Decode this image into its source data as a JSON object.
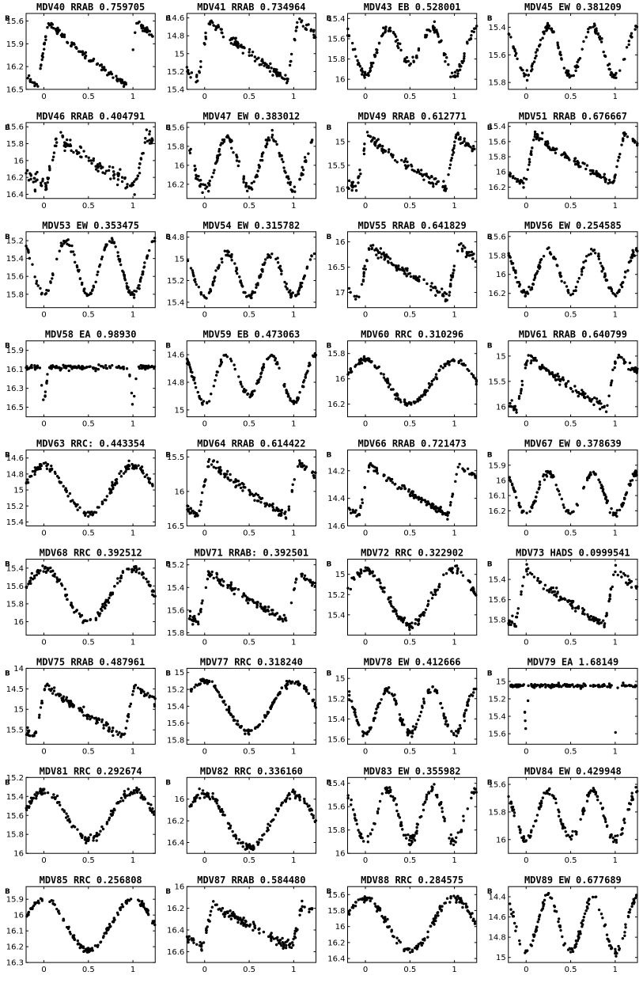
{
  "page": {
    "y_axis_label": "B",
    "x_ticks": [
      "0",
      "0.5",
      "1"
    ]
  },
  "chart_data": [
    {
      "type": "scatter",
      "star": "MDV40",
      "class": "RRAB",
      "period": "0.759705",
      "title": "MDV40 RRAB 0.759705",
      "ylim": [
        16.5,
        15.5
      ],
      "yticks": [
        "15.6",
        "15.9",
        "16.2",
        "16.5"
      ],
      "xlim": [
        -0.2,
        1.25
      ],
      "min_mag": 15.6,
      "max_mag": 16.45,
      "shape": "rr",
      "phase_max": 0.05,
      "noise": 0.05
    },
    {
      "type": "scatter",
      "star": "MDV41",
      "class": "RRAB",
      "period": "0.734964",
      "title": "MDV41 RRAB 0.734964",
      "ylim": [
        15.4,
        14.55
      ],
      "yticks": [
        "14.6",
        "14.8",
        "15",
        "15.2",
        "15.4"
      ],
      "xlim": [
        -0.2,
        1.25
      ],
      "min_mag": 14.6,
      "max_mag": 15.3,
      "shape": "rr",
      "phase_max": 0.05,
      "noise": 0.06
    },
    {
      "type": "scatter",
      "star": "MDV43",
      "class": "EB",
      "period": "0.528001",
      "title": "MDV43 EB 0.528001",
      "ylim": [
        16.1,
        15.35
      ],
      "yticks": [
        "15.4",
        "15.6",
        "15.8",
        "16"
      ],
      "xlim": [
        -0.2,
        1.25
      ],
      "min_mag": 15.5,
      "max_mag": 15.95,
      "shape": "eb",
      "secondary": 0.75,
      "noise": 0.08
    },
    {
      "type": "scatter",
      "star": "MDV45",
      "class": "EW",
      "period": "0.381209",
      "title": "MDV45 EW 0.381209",
      "ylim": [
        15.85,
        15.3
      ],
      "yticks": [
        "15.4",
        "15.6",
        "15.8"
      ],
      "xlim": [
        -0.2,
        1.25
      ],
      "min_mag": 15.4,
      "max_mag": 15.75,
      "shape": "ew",
      "noise": 0.07
    },
    {
      "type": "scatter",
      "star": "MDV46",
      "class": "RRAB",
      "period": "0.404791",
      "title": "MDV46 RRAB 0.404791",
      "ylim": [
        16.45,
        15.55
      ],
      "yticks": [
        "15.6",
        "15.8",
        "16",
        "16.2",
        "16.4"
      ],
      "xlim": [
        -0.2,
        1.25
      ],
      "min_mag": 15.7,
      "max_mag": 16.3,
      "shape": "rr",
      "phase_max": 0.15,
      "noise": 0.12
    },
    {
      "type": "scatter",
      "star": "MDV47",
      "class": "EW",
      "period": "0.383012",
      "title": "MDV47 EW 0.383012",
      "ylim": [
        16.35,
        15.55
      ],
      "yticks": [
        "15.6",
        "15.8",
        "16",
        "16.2"
      ],
      "xlim": [
        -0.2,
        1.25
      ],
      "min_mag": 15.7,
      "max_mag": 16.25,
      "shape": "ew",
      "noise": 0.08
    },
    {
      "type": "scatter",
      "star": "MDV49",
      "class": "RRAB",
      "period": "0.612771",
      "title": "MDV49 RRAB 0.612771",
      "ylim": [
        16.2,
        14.6
      ],
      "yticks": [
        "15",
        "15.5",
        "16"
      ],
      "xlim": [
        -0.2,
        1.25
      ],
      "min_mag": 14.85,
      "max_mag": 16.0,
      "shape": "rr",
      "phase_max": 0.02,
      "noise": 0.07
    },
    {
      "type": "scatter",
      "star": "MDV51",
      "class": "RRAB",
      "period": "0.676667",
      "title": "MDV51 RRAB 0.676667",
      "ylim": [
        16.35,
        15.35
      ],
      "yticks": [
        "15.4",
        "15.6",
        "15.8",
        "16",
        "16.2"
      ],
      "xlim": [
        -0.2,
        1.25
      ],
      "min_mag": 15.5,
      "max_mag": 16.15,
      "shape": "rr",
      "phase_max": 0.1,
      "noise": 0.07
    },
    {
      "type": "scatter",
      "star": "MDV53",
      "class": "EW",
      "period": "0.353475",
      "title": "MDV53 EW 0.353475",
      "ylim": [
        15.95,
        15.1
      ],
      "yticks": [
        "15.2",
        "15.4",
        "15.6",
        "15.8"
      ],
      "xlim": [
        -0.2,
        1.25
      ],
      "min_mag": 15.2,
      "max_mag": 15.8,
      "shape": "ew",
      "noise": 0.05
    },
    {
      "type": "scatter",
      "star": "MDV54",
      "class": "EW",
      "period": "0.315782",
      "title": "MDV54 EW 0.315782",
      "ylim": [
        15.45,
        14.75
      ],
      "yticks": [
        "14.8",
        "15",
        "15.2",
        "15.4"
      ],
      "xlim": [
        -0.2,
        1.25
      ],
      "min_mag": 14.95,
      "max_mag": 15.35,
      "shape": "ew",
      "noise": 0.07
    },
    {
      "type": "scatter",
      "star": "MDV55",
      "class": "RRAB",
      "period": "0.641829",
      "title": "MDV55 RRAB 0.641829",
      "ylim": [
        17.3,
        15.8
      ],
      "yticks": [
        "16",
        "16.5",
        "17"
      ],
      "xlim": [
        -0.2,
        1.25
      ],
      "min_mag": 16.05,
      "max_mag": 17.1,
      "shape": "rr",
      "phase_max": 0.05,
      "noise": 0.08
    },
    {
      "type": "scatter",
      "star": "MDV56",
      "class": "EW",
      "period": "0.254585",
      "title": "MDV56 EW 0.254585",
      "ylim": [
        16.35,
        15.55
      ],
      "yticks": [
        "15.6",
        "15.8",
        "16",
        "16.2"
      ],
      "xlim": [
        -0.2,
        1.25
      ],
      "min_mag": 15.75,
      "max_mag": 16.2,
      "shape": "ew",
      "noise": 0.08
    },
    {
      "type": "scatter",
      "star": "MDV58",
      "class": "EA",
      "period": "0.98930",
      "title": "MDV58 EA 0.98930",
      "ylim": [
        16.6,
        15.8
      ],
      "yticks": [
        "15.9",
        "16.1",
        "16.3",
        "16.5"
      ],
      "xlim": [
        -0.2,
        1.25
      ],
      "min_mag": 16.08,
      "max_mag": 16.5,
      "shape": "ea",
      "eclipse_width": 0.04,
      "noise": 0.05
    },
    {
      "type": "scatter",
      "star": "MDV59",
      "class": "EB",
      "period": "0.473063",
      "title": "MDV59 EB 0.473063",
      "ylim": [
        15.05,
        14.5
      ],
      "yticks": [
        "14.6",
        "14.8",
        "15"
      ],
      "xlim": [
        -0.2,
        1.25
      ],
      "min_mag": 14.6,
      "max_mag": 14.95,
      "shape": "eb",
      "secondary": 0.85,
      "noise": 0.05
    },
    {
      "type": "scatter",
      "star": "MDV60",
      "class": "RRC",
      "period": "0.310296",
      "title": "MDV60 RRC 0.310296",
      "ylim": [
        16.3,
        15.7
      ],
      "yticks": [
        "15.8",
        "16",
        "16.2"
      ],
      "xlim": [
        -0.2,
        1.25
      ],
      "min_mag": 15.85,
      "max_mag": 16.2,
      "shape": "rrc",
      "phase_max": 0.0,
      "noise": 0.06
    },
    {
      "type": "scatter",
      "star": "MDV61",
      "class": "RRAB",
      "period": "0.640799",
      "title": "MDV61 RRAB 0.640799",
      "ylim": [
        16.2,
        14.7
      ],
      "yticks": [
        "15",
        "15.5",
        "16"
      ],
      "xlim": [
        -0.2,
        1.25
      ],
      "min_mag": 14.95,
      "max_mag": 16.05,
      "shape": "rr",
      "phase_max": 0.02,
      "noise": 0.06
    },
    {
      "type": "scatter",
      "star": "MDV63",
      "class": "RRC:",
      "period": "0.443354",
      "title": "MDV63 RRC: 0.443354",
      "ylim": [
        15.45,
        14.5
      ],
      "yticks": [
        "14.6",
        "14.8",
        "15",
        "15.2",
        "15.4"
      ],
      "xlim": [
        -0.2,
        1.25
      ],
      "min_mag": 14.7,
      "max_mag": 15.3,
      "shape": "rrc",
      "phase_max": 0.0,
      "noise": 0.07
    },
    {
      "type": "scatter",
      "star": "MDV64",
      "class": "RRAB",
      "period": "0.614422",
      "title": "MDV64 RRAB 0.614422",
      "ylim": [
        16.5,
        15.4
      ],
      "yticks": [
        "15.5",
        "16",
        "16.5"
      ],
      "xlim": [
        -0.2,
        1.25
      ],
      "min_mag": 15.55,
      "max_mag": 16.35,
      "shape": "rr",
      "phase_max": 0.05,
      "noise": 0.07
    },
    {
      "type": "scatter",
      "star": "MDV66",
      "class": "RRAB",
      "period": "0.721473",
      "title": "MDV66 RRAB 0.721473",
      "ylim": [
        14.6,
        14.05
      ],
      "yticks": [
        "14.2",
        "14.4",
        "14.6"
      ],
      "xlim": [
        -0.2,
        1.25
      ],
      "min_mag": 14.15,
      "max_mag": 14.52,
      "shape": "rr",
      "phase_max": 0.05,
      "noise": 0.05
    },
    {
      "type": "scatter",
      "star": "MDV67",
      "class": "EW",
      "period": "0.378639",
      "title": "MDV67 EW 0.378639",
      "ylim": [
        16.3,
        15.8
      ],
      "yticks": [
        "15.9",
        "16",
        "16.1",
        "16.2"
      ],
      "xlim": [
        -0.2,
        1.25
      ],
      "min_mag": 15.95,
      "max_mag": 16.22,
      "shape": "ew",
      "noise": 0.06
    },
    {
      "type": "scatter",
      "star": "MDV68",
      "class": "RRC",
      "period": "0.392512",
      "title": "MDV68 RRC 0.392512",
      "ylim": [
        16.15,
        15.3
      ],
      "yticks": [
        "15.4",
        "15.6",
        "15.8",
        "16"
      ],
      "xlim": [
        -0.2,
        1.25
      ],
      "min_mag": 15.4,
      "max_mag": 16.0,
      "shape": "rrc",
      "phase_max": 0.0,
      "noise": 0.06
    },
    {
      "type": "scatter",
      "star": "MDV71",
      "class": "RRAB:",
      "period": "0.392501",
      "title": "MDV71 RRAB: 0.392501",
      "ylim": [
        15.82,
        15.15
      ],
      "yticks": [
        "15.2",
        "15.4",
        "15.6",
        "15.8"
      ],
      "xlim": [
        -0.2,
        1.25
      ],
      "min_mag": 15.25,
      "max_mag": 15.7,
      "shape": "rr",
      "phase_max": 0.05,
      "noise": 0.06
    },
    {
      "type": "scatter",
      "star": "MDV72",
      "class": "RRC",
      "period": "0.322902",
      "title": "MDV72 RRC 0.322902",
      "ylim": [
        15.6,
        14.85
      ],
      "yticks": [
        "15",
        "15.2",
        "15.4"
      ],
      "xlim": [
        -0.2,
        1.25
      ],
      "min_mag": 14.95,
      "max_mag": 15.5,
      "shape": "rrc",
      "phase_max": 0.0,
      "noise": 0.06
    },
    {
      "type": "scatter",
      "star": "MDV73",
      "class": "HADS",
      "period": "0.0999541",
      "title": "MDV73 HADS 0.0999541",
      "ylim": [
        15.95,
        15.2
      ],
      "yticks": [
        "15.4",
        "15.6",
        "15.8"
      ],
      "xlim": [
        -0.2,
        1.25
      ],
      "min_mag": 15.3,
      "max_mag": 15.85,
      "shape": "rr",
      "phase_max": 0.0,
      "noise": 0.07
    },
    {
      "type": "scatter",
      "star": "MDV75",
      "class": "RRAB",
      "period": "0.487961",
      "title": "MDV75 RRAB 0.487961",
      "ylim": [
        15.85,
        14.0
      ],
      "yticks": [
        "14",
        "14.5",
        "15",
        "15.5"
      ],
      "xlim": [
        -0.2,
        1.25
      ],
      "min_mag": 14.4,
      "max_mag": 15.65,
      "shape": "rr",
      "phase_max": 0.02,
      "noise": 0.07
    },
    {
      "type": "scatter",
      "star": "MDV77",
      "class": "RRC",
      "period": "0.318240",
      "title": "MDV77 RRC 0.318240",
      "ylim": [
        15.85,
        14.95
      ],
      "yticks": [
        "15",
        "15.2",
        "15.4",
        "15.6",
        "15.8"
      ],
      "xlim": [
        -0.2,
        1.25
      ],
      "min_mag": 15.1,
      "max_mag": 15.7,
      "shape": "rrc",
      "phase_max": 0.0,
      "noise": 0.05
    },
    {
      "type": "scatter",
      "star": "MDV78",
      "class": "EW",
      "period": "0.412666",
      "title": "MDV78 EW 0.412666",
      "ylim": [
        15.65,
        14.9
      ],
      "yticks": [
        "15",
        "15.2",
        "15.4",
        "15.6"
      ],
      "xlim": [
        -0.2,
        1.25
      ],
      "min_mag": 15.1,
      "max_mag": 15.55,
      "shape": "ew",
      "noise": 0.07
    },
    {
      "type": "scatter",
      "star": "MDV79",
      "class": "EA",
      "period": "1.68149",
      "title": "MDV79 EA 1.68149",
      "ylim": [
        15.72,
        14.85
      ],
      "yticks": [
        "15",
        "15.2",
        "15.4",
        "15.6"
      ],
      "xlim": [
        -0.2,
        1.25
      ],
      "min_mag": 15.05,
      "max_mag": 15.65,
      "shape": "ea",
      "eclipse_width": 0.025,
      "noise": 0.03
    },
    {
      "type": "scatter",
      "star": "MDV81",
      "class": "RRC",
      "period": "0.292674",
      "title": "MDV81 RRC 0.292674",
      "ylim": [
        16.0,
        15.2
      ],
      "yticks": [
        "15.2",
        "15.4",
        "15.6",
        "15.8",
        "16"
      ],
      "xlim": [
        -0.2,
        1.25
      ],
      "min_mag": 15.35,
      "max_mag": 15.85,
      "shape": "rrc",
      "phase_max": 0.0,
      "noise": 0.07
    },
    {
      "type": "scatter",
      "star": "MDV82",
      "class": "RRC",
      "period": "0.336160",
      "title": "MDV82 RRC 0.336160",
      "ylim": [
        16.5,
        15.8
      ],
      "yticks": [
        "16",
        "16.2",
        "16.4"
      ],
      "xlim": [
        -0.2,
        1.25
      ],
      "min_mag": 15.95,
      "max_mag": 16.45,
      "shape": "rrc",
      "phase_max": 0.0,
      "noise": 0.06
    },
    {
      "type": "scatter",
      "star": "MDV83",
      "class": "EW",
      "period": "0.355982",
      "title": "MDV83 EW 0.355982",
      "ylim": [
        16.0,
        15.35
      ],
      "yticks": [
        "15.4",
        "15.6",
        "15.8",
        "16"
      ],
      "xlim": [
        -0.2,
        1.25
      ],
      "min_mag": 15.45,
      "max_mag": 15.9,
      "shape": "ew",
      "noise": 0.07
    },
    {
      "type": "scatter",
      "star": "MDV84",
      "class": "EW",
      "period": "0.429948",
      "title": "MDV84 EW 0.429948",
      "ylim": [
        16.1,
        15.55
      ],
      "yticks": [
        "15.6",
        "15.8",
        "16"
      ],
      "xlim": [
        -0.2,
        1.25
      ],
      "min_mag": 15.65,
      "max_mag": 16.0,
      "shape": "ew",
      "noise": 0.08
    },
    {
      "type": "scatter",
      "star": "MDV85",
      "class": "RRC",
      "period": "0.256808",
      "title": "MDV85 RRC 0.256808",
      "ylim": [
        16.3,
        15.82
      ],
      "yticks": [
        "15.9",
        "16",
        "16.1",
        "16.2",
        "16.3"
      ],
      "xlim": [
        -0.2,
        1.25
      ],
      "min_mag": 15.9,
      "max_mag": 16.22,
      "shape": "rrc",
      "phase_max": 0.0,
      "noise": 0.05
    },
    {
      "type": "scatter",
      "star": "MDV87",
      "class": "RRAB",
      "period": "0.584480",
      "title": "MDV87 RRAB 0.584480",
      "ylim": [
        16.7,
        16.0
      ],
      "yticks": [
        "16",
        "16.2",
        "16.4",
        "16.6"
      ],
      "xlim": [
        -0.2,
        1.25
      ],
      "min_mag": 16.15,
      "max_mag": 16.55,
      "shape": "rr",
      "phase_max": 0.1,
      "noise": 0.09
    },
    {
      "type": "scatter",
      "star": "MDV88",
      "class": "RRC",
      "period": "0.284575",
      "title": "MDV88 RRC 0.284575",
      "ylim": [
        16.45,
        15.5
      ],
      "yticks": [
        "15.6",
        "15.8",
        "16",
        "16.2",
        "16.4"
      ],
      "xlim": [
        -0.2,
        1.25
      ],
      "min_mag": 15.65,
      "max_mag": 16.3,
      "shape": "rrc",
      "phase_max": 0.0,
      "noise": 0.06
    },
    {
      "type": "scatter",
      "star": "MDV89",
      "class": "EW",
      "period": "0.677689",
      "title": "MDV89 EW 0.677689",
      "ylim": [
        15.05,
        14.3
      ],
      "yticks": [
        "14.4",
        "14.6",
        "14.8",
        "15"
      ],
      "xlim": [
        -0.2,
        1.25
      ],
      "min_mag": 14.4,
      "max_mag": 14.95,
      "shape": "ew",
      "noise": 0.06
    }
  ]
}
